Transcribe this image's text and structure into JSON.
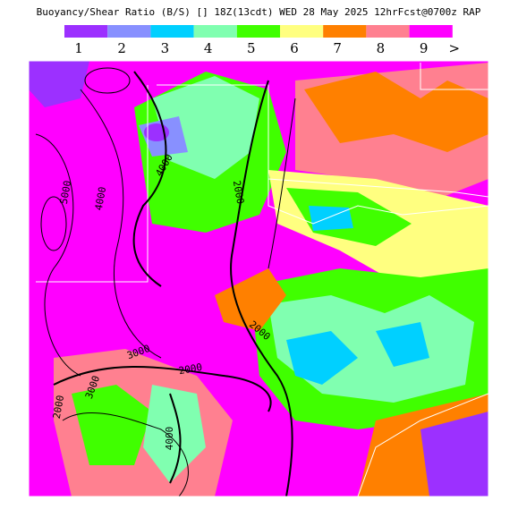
{
  "title": "Buoyancy/Shear Ratio (B/S) [] 18Z(13cdt) WED 28 May 2025 12hrFcst@0700z RAP",
  "legend": [
    {
      "label": "1",
      "color": "#9c30ff"
    },
    {
      "label": "2",
      "color": "#8890ff"
    },
    {
      "label": "3",
      "color": "#00d0ff"
    },
    {
      "label": "4",
      "color": "#80ffb0"
    },
    {
      "label": "5",
      "color": "#40ff00"
    },
    {
      "label": "6",
      "color": "#ffff80"
    },
    {
      "label": "7",
      "color": "#ff8000"
    },
    {
      "label": "8",
      "color": "#ff8090"
    },
    {
      "label": "9",
      "color": "#ff00ff"
    }
  ],
  "legend_more": ">",
  "contour_labels": [
    "4000",
    "5000",
    "4000",
    "2000",
    "2000",
    "2000",
    "3000",
    "2000",
    "3000",
    "4000"
  ]
}
